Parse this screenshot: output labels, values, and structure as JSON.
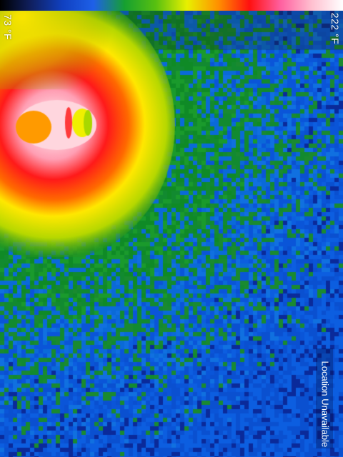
{
  "scale": {
    "min_label": "73 °F",
    "max_label": "222 °F",
    "palette_colors": [
      "#000000",
      "#102060",
      "#1040c0",
      "#1e60e8",
      "#16a030",
      "#58c010",
      "#e8f000",
      "#ff9000",
      "#ff1010",
      "#ff60a0",
      "#ffc0d0",
      "#ffffff"
    ]
  },
  "status": {
    "location": "Location Unavailable"
  },
  "colors": {
    "cold": "#0a55d8",
    "cool": "#168a2e",
    "hot": "#ff1a1a",
    "hottest": "#ffe0e6"
  }
}
